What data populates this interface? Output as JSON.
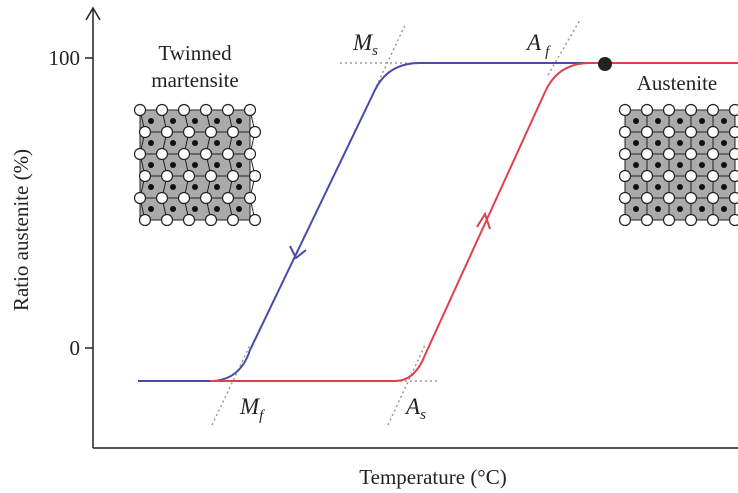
{
  "y_axis": {
    "label": "Ratio austenite (%)",
    "ticks": [
      "100",
      "0"
    ]
  },
  "x_axis": {
    "label": "Temperature (°C)"
  },
  "phases": {
    "martensite": [
      "Twinned",
      "martensite"
    ],
    "austenite": "Austenite"
  },
  "points": {
    "ms": {
      "main": "M",
      "sub": "s"
    },
    "mf": {
      "main": "M",
      "sub": "f"
    },
    "as": {
      "main": "A",
      "sub": "s"
    },
    "af": {
      "main": "A",
      "sub": "f"
    }
  }
}
